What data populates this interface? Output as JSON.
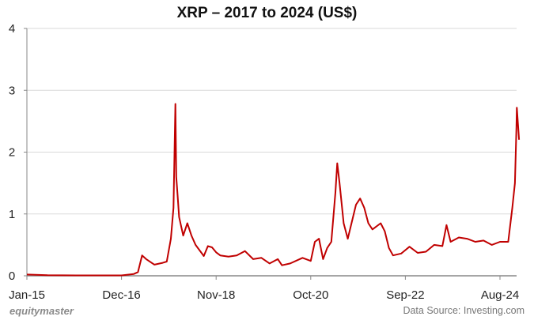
{
  "chart_data": {
    "type": "line",
    "title": "XRP – 2017 to 2024 (US$)",
    "xlabel": "",
    "ylabel": "",
    "ylim": [
      0,
      4
    ],
    "yticks": [
      "0",
      "1",
      "2",
      "3",
      "4"
    ],
    "xticks": [
      "Jan-15",
      "Dec-16",
      "Nov-18",
      "Oct-20",
      "Sep-22",
      "Aug-24"
    ],
    "grid": "horizontal",
    "legend": "none",
    "line_color": "#c00000",
    "series": [
      {
        "name": "XRP (US$)",
        "x": [
          "2015-01",
          "2015-06",
          "2016-01",
          "2016-06",
          "2016-12",
          "2017-03",
          "2017-04",
          "2017-05",
          "2017-06",
          "2017-08",
          "2017-10",
          "2017-11",
          "2017-12",
          "2017-12-20",
          "2018-01-04",
          "2018-01-10",
          "2018-01-20",
          "2018-02",
          "2018-03",
          "2018-04",
          "2018-05",
          "2018-06",
          "2018-08",
          "2018-09",
          "2018-10",
          "2018-11",
          "2018-12",
          "2019-02",
          "2019-04",
          "2019-06",
          "2019-08",
          "2019-10",
          "2019-12",
          "2020-02",
          "2020-03",
          "2020-05",
          "2020-08",
          "2020-10",
          "2020-11",
          "2020-12",
          "2021-01",
          "2021-02",
          "2021-03",
          "2021-04",
          "2021-04-14",
          "2021-05",
          "2021-06",
          "2021-07",
          "2021-09",
          "2021-10",
          "2021-11",
          "2021-12",
          "2022-01",
          "2022-03",
          "2022-04",
          "2022-05",
          "2022-06",
          "2022-08",
          "2022-10",
          "2022-12",
          "2023-02",
          "2023-04",
          "2023-06",
          "2023-07",
          "2023-08",
          "2023-10",
          "2023-12",
          "2024-02",
          "2024-04",
          "2024-06",
          "2024-08",
          "2024-10",
          "2024-11",
          "2024-11-20",
          "2024-12",
          "2024-12-04",
          "2024-12-20"
        ],
        "values": [
          0.02,
          0.01,
          0.006,
          0.007,
          0.007,
          0.03,
          0.06,
          0.33,
          0.27,
          0.18,
          0.21,
          0.23,
          0.6,
          1.1,
          2.78,
          1.6,
          1.3,
          0.95,
          0.65,
          0.85,
          0.65,
          0.5,
          0.32,
          0.48,
          0.46,
          0.38,
          0.33,
          0.31,
          0.33,
          0.4,
          0.27,
          0.29,
          0.2,
          0.27,
          0.17,
          0.2,
          0.29,
          0.24,
          0.55,
          0.6,
          0.27,
          0.45,
          0.55,
          1.35,
          1.82,
          1.5,
          0.85,
          0.6,
          1.15,
          1.25,
          1.1,
          0.85,
          0.75,
          0.85,
          0.72,
          0.45,
          0.33,
          0.36,
          0.47,
          0.37,
          0.39,
          0.5,
          0.48,
          0.82,
          0.55,
          0.62,
          0.6,
          0.55,
          0.57,
          0.5,
          0.55,
          0.55,
          1.1,
          1.5,
          2.4,
          2.72,
          2.2
        ]
      }
    ]
  },
  "branding": {
    "logo_text": "equitymaster",
    "source_text": "Data Source: Investing.com"
  }
}
